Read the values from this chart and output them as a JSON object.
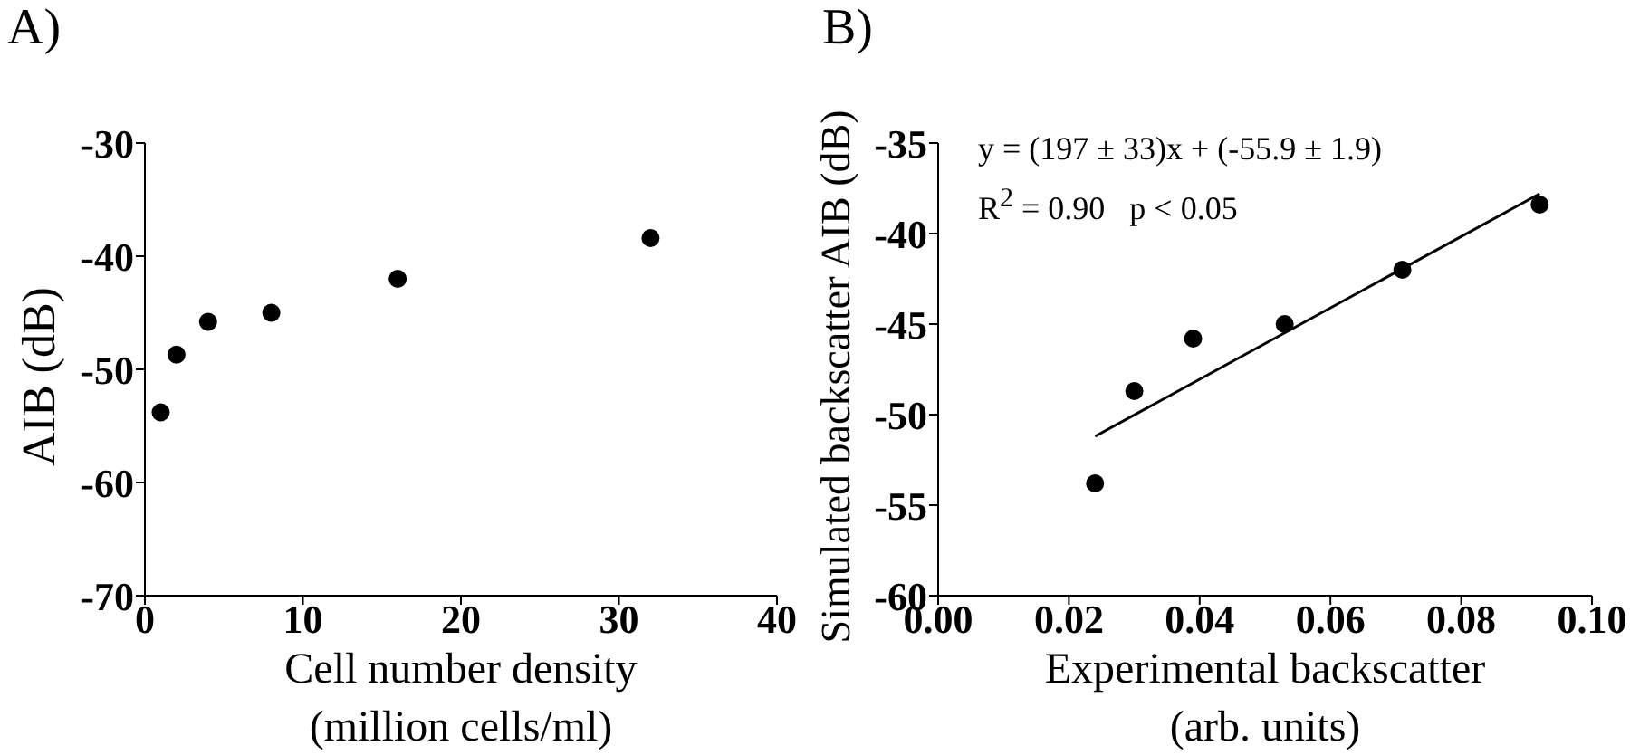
{
  "chart_data": [
    {
      "type": "scatter",
      "title": "A)",
      "xlabel": "Cell number density\n(million cells/ml)",
      "ylabel": "AIB (dB)",
      "marker": "circle",
      "series": [
        {
          "color": "#000000",
          "x": [
            1,
            2,
            4,
            8,
            16,
            32
          ],
          "values": [
            -53.8,
            -48.7,
            -45.8,
            -45.0,
            -42.0,
            -38.4
          ]
        }
      ],
      "xlim": [
        0,
        40
      ],
      "xticks": [
        0,
        10,
        20,
        30,
        40
      ],
      "ylim": [
        -70,
        -30
      ],
      "yticks": [
        -70,
        -60,
        -50,
        -40,
        -30
      ]
    },
    {
      "type": "scatter",
      "title": "B)",
      "xlabel": "Experimental backscatter\n(arb. units)",
      "ylabel": "Simulated backscatter AIB (dB)",
      "marker": "circle",
      "annotations": [
        "y = (197 ± 33)x + (-55.9 ± 1.9)",
        "R$^{2}$ = 0.90   p < 0.05"
      ],
      "series": [
        {
          "color": "#000000",
          "x": [
            0.024,
            0.03,
            0.039,
            0.053,
            0.071,
            0.092
          ],
          "values": [
            -53.8,
            -48.7,
            -45.8,
            -45.0,
            -42.0,
            -38.4
          ]
        },
        {
          "type": "line",
          "marker": "none",
          "color": "#000000",
          "x": [
            0.024,
            0.092
          ],
          "values": [
            -51.2,
            -37.8
          ]
        }
      ],
      "xlim": [
        0,
        0.1
      ],
      "xticks": [
        {
          "value": 0,
          "label": "0.00"
        },
        {
          "value": 0.02,
          "label": "0.02"
        },
        {
          "value": 0.04,
          "label": "0.04"
        },
        {
          "value": 0.06,
          "label": "0.06"
        },
        {
          "value": 0.08,
          "label": "0.08"
        },
        {
          "value": 0.1,
          "label": "0.10"
        }
      ],
      "ylim": [
        -60,
        -35
      ],
      "yticks": [
        -60,
        -55,
        -50,
        -45,
        -40,
        -35
      ]
    }
  ]
}
